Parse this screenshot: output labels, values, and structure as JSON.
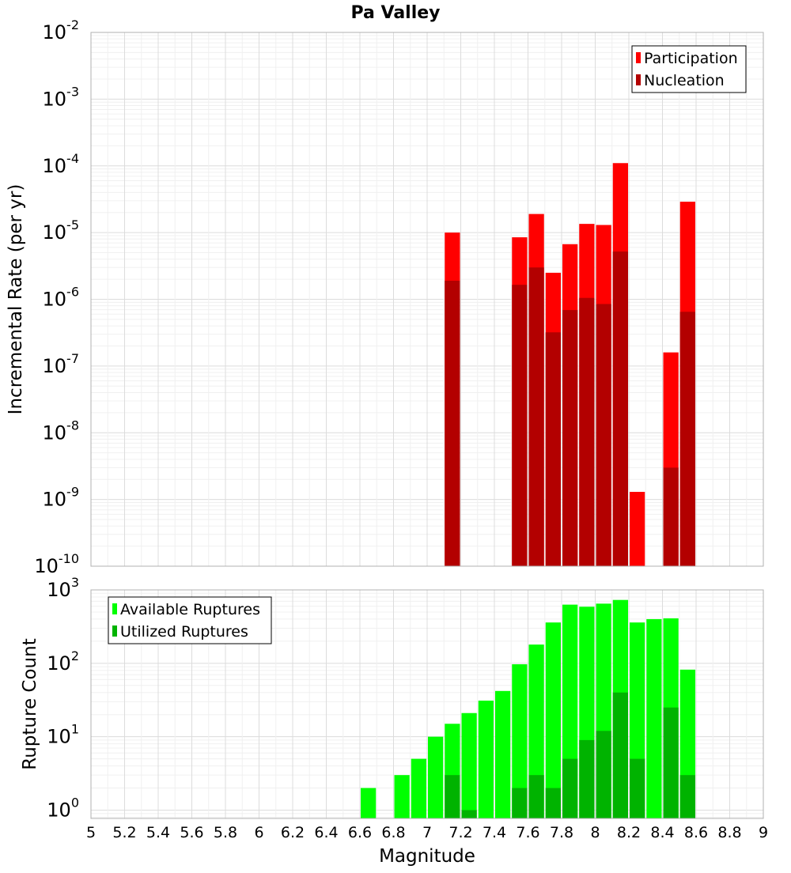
{
  "chart_data": {
    "type": "bar",
    "title": "Pa Valley",
    "xlabel": "Magnitude",
    "xlim": [
      5,
      9
    ],
    "x_ticks": [
      "5",
      "5.2",
      "5.4",
      "5.6",
      "5.8",
      "6",
      "6.2",
      "6.4",
      "6.6",
      "6.8",
      "7",
      "7.2",
      "7.4",
      "7.6",
      "7.8",
      "8",
      "8.2",
      "8.4",
      "8.6",
      "8.8",
      "9"
    ],
    "bin_width": 0.1,
    "grid": true,
    "panels": [
      {
        "ylabel": "Incremental Rate (per yr)",
        "yscale": "log",
        "ylim": [
          1e-10,
          0.01
        ],
        "y_tick_mantissa": "10",
        "y_tick_exponents": [
          "-10",
          "-9",
          "-8",
          "-7",
          "-6",
          "-5",
          "-4",
          "-3",
          "-2"
        ],
        "legend_position": "top-right",
        "series": [
          {
            "name": "Participation",
            "color": "#ff0000",
            "x": [
              7.15,
              7.55,
              7.65,
              7.75,
              7.85,
              7.95,
              8.05,
              8.15,
              8.25,
              8.45,
              8.55
            ],
            "values": [
              1e-05,
              8.5e-06,
              1.9e-05,
              2.5e-06,
              6.7e-06,
              1.35e-05,
              1.3e-05,
              0.00011,
              1.3e-09,
              1.6e-07,
              2.9e-05
            ]
          },
          {
            "name": "Nucleation",
            "color": "#b30000",
            "x": [
              7.15,
              7.55,
              7.65,
              7.75,
              7.85,
              7.95,
              8.05,
              8.15,
              8.45,
              8.55
            ],
            "values": [
              1.9e-06,
              1.65e-06,
              3e-06,
              3.2e-07,
              6.9e-07,
              1.05e-06,
              8.5e-07,
              5.2e-06,
              3e-09,
              6.5e-07
            ]
          }
        ]
      },
      {
        "ylabel": "Rupture Count",
        "yscale": "log",
        "ylim": [
          0.77,
          1000
        ],
        "y_tick_mantissa": "10",
        "y_tick_exponents": [
          "0",
          "1",
          "2",
          "3"
        ],
        "legend_position": "top-left",
        "series": [
          {
            "name": "Available Ruptures",
            "color": "#00ff00",
            "x": [
              6.65,
              6.85,
              6.95,
              7.05,
              7.15,
              7.25,
              7.35,
              7.45,
              7.55,
              7.65,
              7.75,
              7.85,
              7.95,
              8.05,
              8.15,
              8.25,
              8.35,
              8.45,
              8.55
            ],
            "values": [
              2,
              3,
              5,
              10,
              15,
              21,
              31,
              42,
              97,
              180,
              360,
              630,
              590,
              650,
              730,
              360,
              400,
              410,
              82
            ]
          },
          {
            "name": "Utilized Ruptures",
            "color": "#00b300",
            "x": [
              7.15,
              7.25,
              7.55,
              7.65,
              7.75,
              7.85,
              7.95,
              8.05,
              8.15,
              8.25,
              8.45,
              8.55
            ],
            "values": [
              3,
              1,
              2,
              3,
              2,
              5,
              9,
              12,
              40,
              5,
              25,
              3
            ]
          }
        ]
      }
    ]
  }
}
